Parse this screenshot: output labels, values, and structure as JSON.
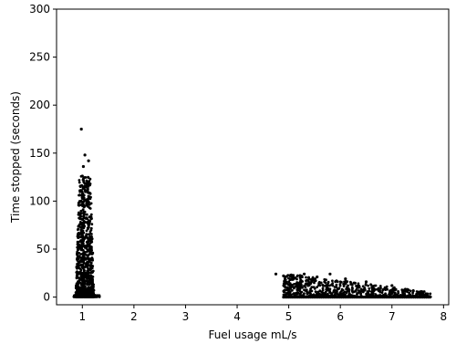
{
  "chart_data": {
    "type": "scatter",
    "title": "",
    "xlabel": "Fuel usage  mL/s",
    "ylabel": "Time stopped (seconds)",
    "xlim": [
      0.5,
      8.1
    ],
    "ylim": [
      -8,
      300
    ],
    "xticks": [
      1,
      2,
      3,
      4,
      5,
      6,
      7,
      8
    ],
    "yticks": [
      0,
      50,
      100,
      150,
      200,
      250,
      300
    ],
    "grid": false,
    "legend": "none",
    "marker_color": "#000000",
    "clusters": [
      {
        "name": "",
        "x_center": 1.05,
        "x_spread": 0.18,
        "y_max": 175,
        "point_count": 900,
        "outliers": [
          [
            0.98,
            175
          ],
          [
            1.05,
            148
          ],
          [
            1.12,
            142
          ],
          [
            1.02,
            136
          ],
          [
            1.0,
            126
          ]
        ]
      },
      {
        "name": "",
        "x_range": [
          4.9,
          7.75
        ],
        "y_max": 25,
        "point_count": 700,
        "outliers": [
          [
            4.75,
            24
          ],
          [
            4.9,
            22
          ],
          [
            5.05,
            23
          ],
          [
            5.3,
            24
          ],
          [
            5.55,
            21
          ],
          [
            5.8,
            24
          ],
          [
            6.1,
            19
          ],
          [
            6.5,
            16
          ],
          [
            7.0,
            12
          ],
          [
            7.3,
            8
          ]
        ]
      }
    ]
  }
}
